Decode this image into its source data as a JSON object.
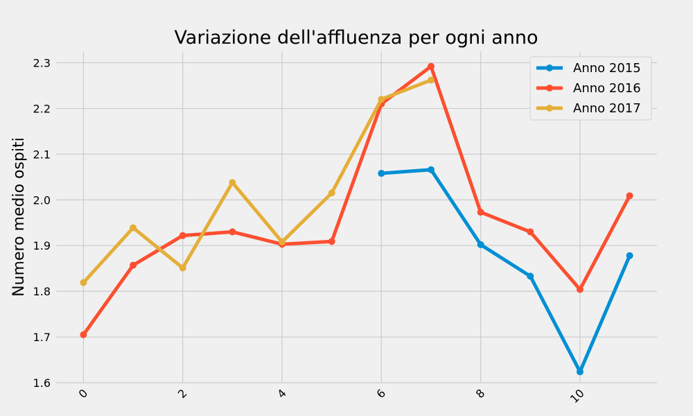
{
  "chart_data": {
    "type": "line",
    "title": "Variazione dell'affluenza per ogni anno",
    "xlabel": "",
    "ylabel": "Numero medio ospiti",
    "xlim": [
      -0.55,
      11.55
    ],
    "ylim": [
      1.6,
      2.325
    ],
    "xticks": [
      "0",
      "2",
      "4",
      "6",
      "8",
      "10"
    ],
    "yticks": [
      "1.6",
      "1.7",
      "1.8",
      "1.9",
      "2.0",
      "2.1",
      "2.2",
      "2.3"
    ],
    "grid": true,
    "legend_position": "top-right",
    "series": [
      {
        "name": "Anno 2015",
        "color": "#008fd5",
        "x": [
          6,
          7,
          8,
          9,
          10,
          11
        ],
        "values": [
          2.058,
          2.066,
          1.902,
          1.833,
          1.624,
          1.878
        ]
      },
      {
        "name": "Anno 2016",
        "color": "#fc4f30",
        "x": [
          0,
          1,
          2,
          3,
          4,
          5,
          6,
          7,
          8,
          9,
          10,
          11
        ],
        "values": [
          1.705,
          1.857,
          1.922,
          1.93,
          1.903,
          1.909,
          2.21,
          2.292,
          1.973,
          1.93,
          1.804,
          2.009
        ]
      },
      {
        "name": "Anno 2017",
        "color": "#e5ae38",
        "x": [
          0,
          1,
          2,
          3,
          4,
          5,
          6,
          7
        ],
        "values": [
          1.819,
          1.939,
          1.851,
          2.038,
          1.908,
          2.015,
          2.22,
          2.262
        ]
      }
    ]
  }
}
